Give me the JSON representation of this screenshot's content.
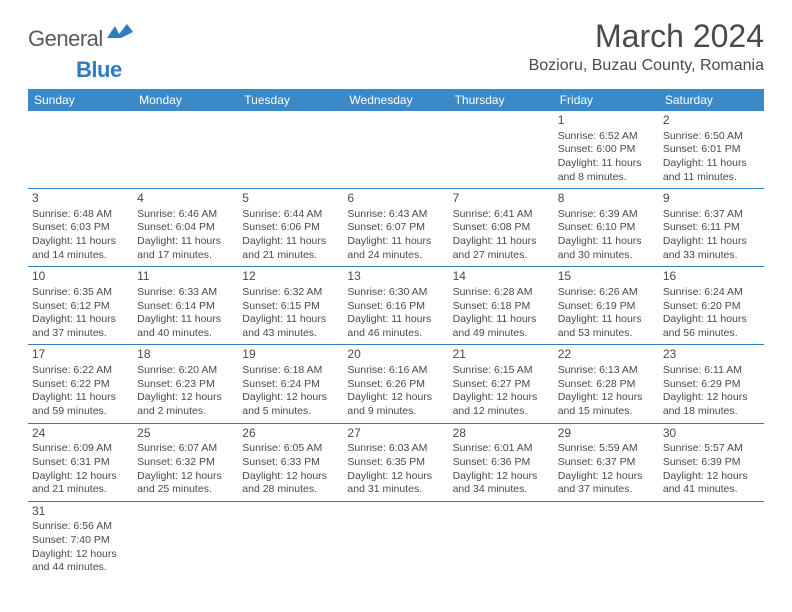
{
  "brand": {
    "part1": "General",
    "part2": "Blue"
  },
  "title": "March 2024",
  "location": "Bozioru, Buzau County, Romania",
  "colors": {
    "header_bg": "#3a89c9",
    "header_text": "#ffffff",
    "border": "#2e7cc2",
    "text": "#4a4a4a",
    "brand_blue": "#2e7cc2"
  },
  "weekdays": [
    "Sunday",
    "Monday",
    "Tuesday",
    "Wednesday",
    "Thursday",
    "Friday",
    "Saturday"
  ],
  "weeks": [
    [
      null,
      null,
      null,
      null,
      null,
      {
        "n": "1",
        "sr": "Sunrise: 6:52 AM",
        "ss": "Sunset: 6:00 PM",
        "d1": "Daylight: 11 hours",
        "d2": "and 8 minutes."
      },
      {
        "n": "2",
        "sr": "Sunrise: 6:50 AM",
        "ss": "Sunset: 6:01 PM",
        "d1": "Daylight: 11 hours",
        "d2": "and 11 minutes."
      }
    ],
    [
      {
        "n": "3",
        "sr": "Sunrise: 6:48 AM",
        "ss": "Sunset: 6:03 PM",
        "d1": "Daylight: 11 hours",
        "d2": "and 14 minutes."
      },
      {
        "n": "4",
        "sr": "Sunrise: 6:46 AM",
        "ss": "Sunset: 6:04 PM",
        "d1": "Daylight: 11 hours",
        "d2": "and 17 minutes."
      },
      {
        "n": "5",
        "sr": "Sunrise: 6:44 AM",
        "ss": "Sunset: 6:06 PM",
        "d1": "Daylight: 11 hours",
        "d2": "and 21 minutes."
      },
      {
        "n": "6",
        "sr": "Sunrise: 6:43 AM",
        "ss": "Sunset: 6:07 PM",
        "d1": "Daylight: 11 hours",
        "d2": "and 24 minutes."
      },
      {
        "n": "7",
        "sr": "Sunrise: 6:41 AM",
        "ss": "Sunset: 6:08 PM",
        "d1": "Daylight: 11 hours",
        "d2": "and 27 minutes."
      },
      {
        "n": "8",
        "sr": "Sunrise: 6:39 AM",
        "ss": "Sunset: 6:10 PM",
        "d1": "Daylight: 11 hours",
        "d2": "and 30 minutes."
      },
      {
        "n": "9",
        "sr": "Sunrise: 6:37 AM",
        "ss": "Sunset: 6:11 PM",
        "d1": "Daylight: 11 hours",
        "d2": "and 33 minutes."
      }
    ],
    [
      {
        "n": "10",
        "sr": "Sunrise: 6:35 AM",
        "ss": "Sunset: 6:12 PM",
        "d1": "Daylight: 11 hours",
        "d2": "and 37 minutes."
      },
      {
        "n": "11",
        "sr": "Sunrise: 6:33 AM",
        "ss": "Sunset: 6:14 PM",
        "d1": "Daylight: 11 hours",
        "d2": "and 40 minutes."
      },
      {
        "n": "12",
        "sr": "Sunrise: 6:32 AM",
        "ss": "Sunset: 6:15 PM",
        "d1": "Daylight: 11 hours",
        "d2": "and 43 minutes."
      },
      {
        "n": "13",
        "sr": "Sunrise: 6:30 AM",
        "ss": "Sunset: 6:16 PM",
        "d1": "Daylight: 11 hours",
        "d2": "and 46 minutes."
      },
      {
        "n": "14",
        "sr": "Sunrise: 6:28 AM",
        "ss": "Sunset: 6:18 PM",
        "d1": "Daylight: 11 hours",
        "d2": "and 49 minutes."
      },
      {
        "n": "15",
        "sr": "Sunrise: 6:26 AM",
        "ss": "Sunset: 6:19 PM",
        "d1": "Daylight: 11 hours",
        "d2": "and 53 minutes."
      },
      {
        "n": "16",
        "sr": "Sunrise: 6:24 AM",
        "ss": "Sunset: 6:20 PM",
        "d1": "Daylight: 11 hours",
        "d2": "and 56 minutes."
      }
    ],
    [
      {
        "n": "17",
        "sr": "Sunrise: 6:22 AM",
        "ss": "Sunset: 6:22 PM",
        "d1": "Daylight: 11 hours",
        "d2": "and 59 minutes."
      },
      {
        "n": "18",
        "sr": "Sunrise: 6:20 AM",
        "ss": "Sunset: 6:23 PM",
        "d1": "Daylight: 12 hours",
        "d2": "and 2 minutes."
      },
      {
        "n": "19",
        "sr": "Sunrise: 6:18 AM",
        "ss": "Sunset: 6:24 PM",
        "d1": "Daylight: 12 hours",
        "d2": "and 5 minutes."
      },
      {
        "n": "20",
        "sr": "Sunrise: 6:16 AM",
        "ss": "Sunset: 6:26 PM",
        "d1": "Daylight: 12 hours",
        "d2": "and 9 minutes."
      },
      {
        "n": "21",
        "sr": "Sunrise: 6:15 AM",
        "ss": "Sunset: 6:27 PM",
        "d1": "Daylight: 12 hours",
        "d2": "and 12 minutes."
      },
      {
        "n": "22",
        "sr": "Sunrise: 6:13 AM",
        "ss": "Sunset: 6:28 PM",
        "d1": "Daylight: 12 hours",
        "d2": "and 15 minutes."
      },
      {
        "n": "23",
        "sr": "Sunrise: 6:11 AM",
        "ss": "Sunset: 6:29 PM",
        "d1": "Daylight: 12 hours",
        "d2": "and 18 minutes."
      }
    ],
    [
      {
        "n": "24",
        "sr": "Sunrise: 6:09 AM",
        "ss": "Sunset: 6:31 PM",
        "d1": "Daylight: 12 hours",
        "d2": "and 21 minutes."
      },
      {
        "n": "25",
        "sr": "Sunrise: 6:07 AM",
        "ss": "Sunset: 6:32 PM",
        "d1": "Daylight: 12 hours",
        "d2": "and 25 minutes."
      },
      {
        "n": "26",
        "sr": "Sunrise: 6:05 AM",
        "ss": "Sunset: 6:33 PM",
        "d1": "Daylight: 12 hours",
        "d2": "and 28 minutes."
      },
      {
        "n": "27",
        "sr": "Sunrise: 6:03 AM",
        "ss": "Sunset: 6:35 PM",
        "d1": "Daylight: 12 hours",
        "d2": "and 31 minutes."
      },
      {
        "n": "28",
        "sr": "Sunrise: 6:01 AM",
        "ss": "Sunset: 6:36 PM",
        "d1": "Daylight: 12 hours",
        "d2": "and 34 minutes."
      },
      {
        "n": "29",
        "sr": "Sunrise: 5:59 AM",
        "ss": "Sunset: 6:37 PM",
        "d1": "Daylight: 12 hours",
        "d2": "and 37 minutes."
      },
      {
        "n": "30",
        "sr": "Sunrise: 5:57 AM",
        "ss": "Sunset: 6:39 PM",
        "d1": "Daylight: 12 hours",
        "d2": "and 41 minutes."
      }
    ],
    [
      {
        "n": "31",
        "sr": "Sunrise: 6:56 AM",
        "ss": "Sunset: 7:40 PM",
        "d1": "Daylight: 12 hours",
        "d2": "and 44 minutes."
      },
      null,
      null,
      null,
      null,
      null,
      null
    ]
  ]
}
